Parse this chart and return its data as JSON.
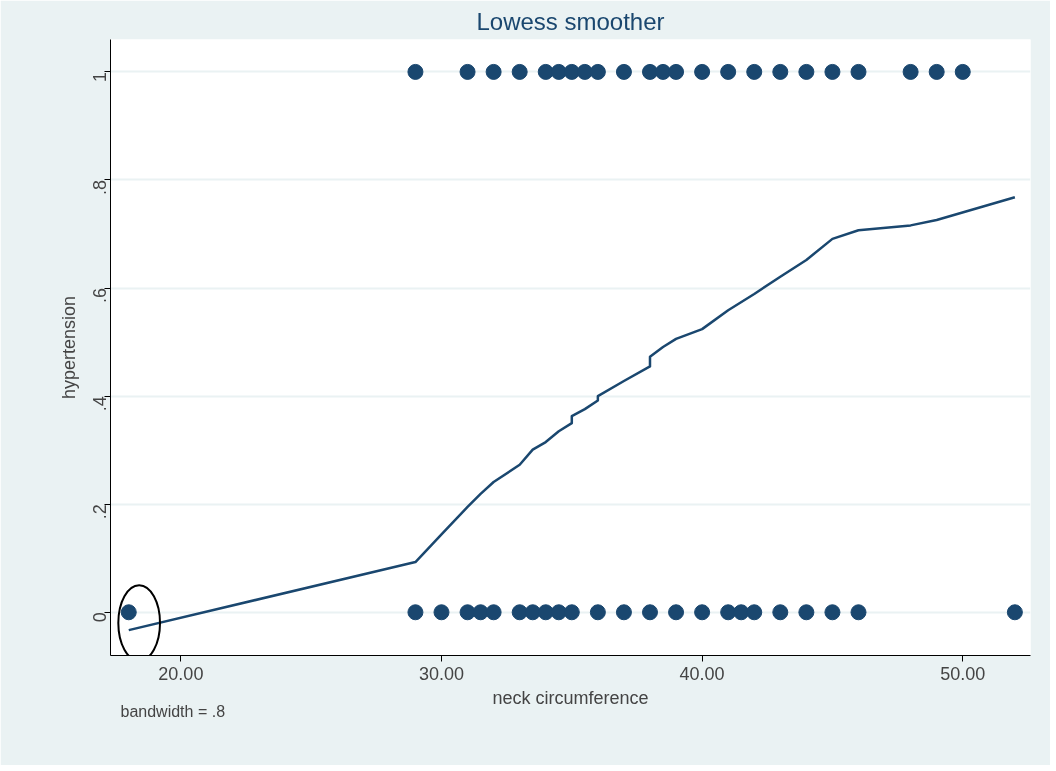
{
  "chart_data": {
    "type": "scatter",
    "title": "Lowess smoother",
    "xlabel": "neck circumference",
    "ylabel": "hypertension",
    "xlim": [
      17.3,
      52.6
    ],
    "ylim": [
      -0.08,
      1.06
    ],
    "xticks": [
      {
        "value": 20,
        "label": "20.00"
      },
      {
        "value": 30,
        "label": "30.00"
      },
      {
        "value": 40,
        "label": "40.00"
      },
      {
        "value": 50,
        "label": "50.00"
      }
    ],
    "yticks": [
      0,
      {
        "value": 0.2,
        "label": ".2"
      },
      {
        "value": 0.4,
        "label": ".4"
      },
      {
        "value": 0.6,
        "label": ".6"
      },
      {
        "value": 0.8,
        "label": ".8"
      },
      1
    ],
    "grid": "y",
    "marker": "circle",
    "annotations": [
      "bandwidth = .8"
    ],
    "series": [
      {
        "color": "#1a476f",
        "x": [
          29,
          31,
          32,
          33,
          34,
          34.5,
          35,
          35.5,
          36,
          37,
          38,
          38.5,
          39,
          40,
          41,
          42,
          43,
          44,
          45,
          46,
          48,
          49,
          50
        ],
        "values": [
          1,
          1,
          1,
          1,
          1,
          1,
          1,
          1,
          1,
          1,
          1,
          1,
          1,
          1,
          1,
          1,
          1,
          1,
          1,
          1,
          1,
          1,
          1
        ]
      },
      {
        "color": "#1a476f",
        "x": [
          18,
          29,
          30,
          31,
          31.5,
          32,
          33,
          33.5,
          34,
          34.5,
          35,
          36,
          37,
          38,
          39,
          40,
          41,
          41.5,
          42,
          43,
          44,
          45,
          46,
          52
        ],
        "values": [
          0,
          0,
          0,
          0,
          0,
          0,
          0,
          0,
          0,
          0,
          0,
          0,
          0,
          0,
          0,
          0,
          0,
          0,
          0,
          0,
          0,
          0,
          0,
          0
        ]
      },
      {
        "type": "line",
        "color": "#1a476f",
        "line_style": "solid",
        "marker": "none",
        "x": [
          18,
          29,
          30,
          31,
          31.5,
          32,
          33,
          33.5,
          34,
          34.5,
          35,
          35,
          35.5,
          36,
          36,
          37,
          38,
          38,
          38.5,
          39,
          40,
          41,
          42,
          43,
          44,
          45,
          46,
          48,
          49,
          52
        ],
        "values": [
          -0.033,
          0.093,
          0.144,
          0.195,
          0.219,
          0.241,
          0.273,
          0.301,
          0.315,
          0.335,
          0.35,
          0.363,
          0.376,
          0.392,
          0.4,
          0.428,
          0.455,
          0.473,
          0.491,
          0.506,
          0.524,
          0.559,
          0.589,
          0.621,
          0.652,
          0.691,
          0.707,
          0.716,
          0.726,
          0.768
        ]
      }
    ]
  }
}
